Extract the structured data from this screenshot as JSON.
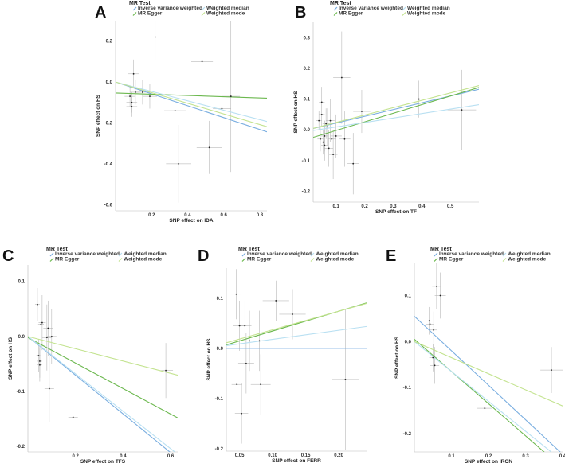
{
  "colors": {
    "ivw": "#7aaee0",
    "egger": "#6cb84f",
    "median": "#b9e0f2",
    "mode": "#c3e38f",
    "point": "#222222",
    "errorbar": "#aaaaaa"
  },
  "legend": {
    "title": "MR Test",
    "items": [
      {
        "key": "ivw",
        "label": "Inverse variance weighted"
      },
      {
        "key": "median",
        "label": "Weighted median"
      },
      {
        "key": "egger",
        "label": "MR Egger"
      },
      {
        "key": "mode",
        "label": "Weighted mode"
      }
    ]
  },
  "chart_data": [
    {
      "panel": "A",
      "type": "scatter",
      "xlabel": "SNP effect on IDA",
      "ylabel": "SNP effect on HS",
      "xlim": [
        0,
        0.84
      ],
      "ylim": [
        -0.63,
        0.3
      ],
      "xticks": [
        0.2,
        0.4,
        0.6,
        0.8
      ],
      "xtick_labels": [
        "0.2",
        "0.4",
        "0.6",
        "0.8"
      ],
      "yticks": [
        -0.6,
        -0.4,
        -0.2,
        0.0,
        0.2
      ],
      "ytick_labels": [
        "-0.6",
        "-0.4",
        "-0.2",
        "0.0",
        "0.2"
      ],
      "points": [
        {
          "x": 0.08,
          "y": -0.07,
          "xe": 0.03,
          "ye": 0.05
        },
        {
          "x": 0.09,
          "y": -0.1,
          "xe": 0.03,
          "ye": 0.05
        },
        {
          "x": 0.09,
          "y": -0.12,
          "xe": 0.03,
          "ye": 0.05
        },
        {
          "x": 0.1,
          "y": 0.04,
          "xe": 0.03,
          "ye": 0.07
        },
        {
          "x": 0.11,
          "y": -0.05,
          "xe": 0.03,
          "ye": 0.06
        },
        {
          "x": 0.15,
          "y": -0.05,
          "xe": 0.04,
          "ye": 0.06
        },
        {
          "x": 0.19,
          "y": -0.07,
          "xe": 0.04,
          "ye": 0.06
        },
        {
          "x": 0.22,
          "y": 0.22,
          "xe": 0.05,
          "ye": 0.11
        },
        {
          "x": 0.33,
          "y": -0.14,
          "xe": 0.06,
          "ye": 0.08
        },
        {
          "x": 0.35,
          "y": -0.4,
          "xe": 0.07,
          "ye": 0.19
        },
        {
          "x": 0.48,
          "y": 0.1,
          "xe": 0.06,
          "ye": 0.16
        },
        {
          "x": 0.52,
          "y": -0.32,
          "xe": 0.07,
          "ye": 0.13
        },
        {
          "x": 0.59,
          "y": -0.13,
          "xe": 0.05,
          "ye": 0.12
        },
        {
          "x": 0.64,
          "y": -0.07,
          "xe": 0.05,
          "ye": 0.37
        }
      ],
      "lines": [
        {
          "key": "ivw",
          "intercept": 0,
          "slope": -0.29
        },
        {
          "key": "egger",
          "intercept": -0.054,
          "slope": -0.03
        },
        {
          "key": "median",
          "intercept": 0,
          "slope": -0.23
        },
        {
          "key": "mode",
          "intercept": 0,
          "slope": -0.26
        }
      ]
    },
    {
      "panel": "B",
      "type": "scatter",
      "xlabel": "SNP effect on TF",
      "ylabel": "SNP effect on HS",
      "xlim": [
        0.02,
        0.6
      ],
      "ylim": [
        -0.235,
        0.35
      ],
      "xticks": [
        0.1,
        0.2,
        0.3,
        0.4,
        0.5
      ],
      "xtick_labels": [
        "0.1",
        "0.2",
        "0.3",
        "0.4",
        "0.5"
      ],
      "yticks": [
        -0.2,
        -0.1,
        0.0,
        0.1,
        0.2,
        0.3
      ],
      "ytick_labels": [
        "-0.2",
        "-0.1",
        "0.0",
        "0.1",
        "0.2",
        "0.3"
      ],
      "points": [
        {
          "x": 0.04,
          "y": 0.03,
          "xe": 0.01,
          "ye": 0.03
        },
        {
          "x": 0.045,
          "y": -0.03,
          "xe": 0.01,
          "ye": 0.04
        },
        {
          "x": 0.05,
          "y": 0.05,
          "xe": 0.01,
          "ye": 0.04
        },
        {
          "x": 0.05,
          "y": 0.09,
          "xe": 0.01,
          "ye": 0.05
        },
        {
          "x": 0.055,
          "y": -0.04,
          "xe": 0.01,
          "ye": 0.04
        },
        {
          "x": 0.06,
          "y": -0.02,
          "xe": 0.012,
          "ye": 0.05
        },
        {
          "x": 0.06,
          "y": -0.05,
          "xe": 0.012,
          "ye": 0.05
        },
        {
          "x": 0.065,
          "y": 0.02,
          "xe": 0.012,
          "ye": 0.05
        },
        {
          "x": 0.07,
          "y": 0.01,
          "xe": 0.012,
          "ye": 0.06
        },
        {
          "x": 0.075,
          "y": -0.06,
          "xe": 0.015,
          "ye": 0.06
        },
        {
          "x": 0.08,
          "y": 0.03,
          "xe": 0.015,
          "ye": 0.07
        },
        {
          "x": 0.085,
          "y": -0.03,
          "xe": 0.015,
          "ye": 0.06
        },
        {
          "x": 0.09,
          "y": -0.08,
          "xe": 0.015,
          "ye": 0.08
        },
        {
          "x": 0.1,
          "y": -0.02,
          "xe": 0.02,
          "ye": 0.07
        },
        {
          "x": 0.12,
          "y": 0.17,
          "xe": 0.03,
          "ye": 0.15
        },
        {
          "x": 0.13,
          "y": -0.03,
          "xe": 0.02,
          "ye": 0.09
        },
        {
          "x": 0.16,
          "y": -0.11,
          "xe": 0.02,
          "ye": 0.1
        },
        {
          "x": 0.19,
          "y": 0.06,
          "xe": 0.03,
          "ye": 0.07
        },
        {
          "x": 0.39,
          "y": 0.1,
          "xe": 0.06,
          "ye": 0.06
        },
        {
          "x": 0.54,
          "y": 0.065,
          "xe": 0.05,
          "ye": 0.13
        }
      ],
      "lines": [
        {
          "key": "ivw",
          "intercept": 0,
          "slope": 0.22
        },
        {
          "key": "egger",
          "intercept": -0.03,
          "slope": 0.28
        },
        {
          "key": "median",
          "intercept": -0.005,
          "slope": 0.145
        },
        {
          "key": "mode",
          "intercept": 0,
          "slope": 0.24
        }
      ]
    },
    {
      "panel": "C",
      "type": "scatter",
      "xlabel": "SNP effect on TFS",
      "ylabel": "SNP effect on HS",
      "xlim": [
        0.0,
        0.63
      ],
      "ylim": [
        -0.21,
        0.13
      ],
      "xticks": [
        0.2,
        0.4,
        0.6
      ],
      "xtick_labels": [
        "0.2",
        "0.4",
        "0.6"
      ],
      "yticks": [
        -0.2,
        -0.1,
        0.0,
        0.1
      ],
      "ytick_labels": [
        "-0.2",
        "-0.1",
        "0.0",
        "0.1"
      ],
      "points": [
        {
          "x": 0.04,
          "y": 0.058,
          "xe": 0.01,
          "ye": 0.03
        },
        {
          "x": 0.045,
          "y": -0.035,
          "xe": 0.01,
          "ye": 0.03
        },
        {
          "x": 0.05,
          "y": -0.045,
          "xe": 0.01,
          "ye": 0.03
        },
        {
          "x": 0.05,
          "y": -0.052,
          "xe": 0.01,
          "ye": 0.03
        },
        {
          "x": 0.055,
          "y": 0.022,
          "xe": 0.012,
          "ye": 0.04
        },
        {
          "x": 0.06,
          "y": 0.025,
          "xe": 0.015,
          "ye": 0.05
        },
        {
          "x": 0.08,
          "y": -0.002,
          "xe": 0.02,
          "ye": 0.06
        },
        {
          "x": 0.085,
          "y": 0.015,
          "xe": 0.02,
          "ye": 0.05
        },
        {
          "x": 0.09,
          "y": -0.095,
          "xe": 0.02,
          "ye": 0.06
        },
        {
          "x": 0.1,
          "y": 0.0,
          "xe": 0.02,
          "ye": 0.05
        },
        {
          "x": 0.19,
          "y": -0.147,
          "xe": 0.02,
          "ye": 0.03
        },
        {
          "x": 0.58,
          "y": -0.062,
          "xe": 0.03,
          "ye": 0.05
        }
      ],
      "lines": [
        {
          "key": "ivw",
          "intercept": 0,
          "slope": -0.352
        },
        {
          "key": "egger",
          "intercept": -0.002,
          "slope": -0.232
        },
        {
          "key": "median",
          "intercept": 0,
          "slope": -0.34
        },
        {
          "key": "mode",
          "intercept": 0,
          "slope": -0.112
        }
      ]
    },
    {
      "panel": "D",
      "type": "scatter",
      "xlabel": "SNP effect on FERR",
      "ylabel": "SNP effect on HS",
      "xlim": [
        0.03,
        0.242
      ],
      "ylim": [
        -0.205,
        0.16
      ],
      "xticks": [
        0.05,
        0.1,
        0.15,
        0.2
      ],
      "xtick_labels": [
        "0.05",
        "0.10",
        "0.15",
        "0.20"
      ],
      "yticks": [
        -0.2,
        -0.1,
        0.0,
        0.1
      ],
      "ytick_labels": [
        "-0.2",
        "-0.1",
        "0.0",
        "0.1"
      ],
      "points": [
        {
          "x": 0.045,
          "y": 0.108,
          "xe": 0.008,
          "ye": 0.05
        },
        {
          "x": 0.046,
          "y": -0.072,
          "xe": 0.008,
          "ye": 0.05
        },
        {
          "x": 0.05,
          "y": 0.045,
          "xe": 0.01,
          "ye": 0.05
        },
        {
          "x": 0.053,
          "y": -0.13,
          "xe": 0.01,
          "ye": 0.06
        },
        {
          "x": 0.058,
          "y": 0.045,
          "xe": 0.01,
          "ye": 0.05
        },
        {
          "x": 0.06,
          "y": -0.03,
          "xe": 0.012,
          "ye": 0.06
        },
        {
          "x": 0.065,
          "y": 0.015,
          "xe": 0.012,
          "ye": 0.06
        },
        {
          "x": 0.08,
          "y": 0.015,
          "xe": 0.015,
          "ye": 0.06
        },
        {
          "x": 0.082,
          "y": -0.072,
          "xe": 0.015,
          "ye": 0.06
        },
        {
          "x": 0.105,
          "y": 0.095,
          "xe": 0.02,
          "ye": 0.04
        },
        {
          "x": 0.13,
          "y": 0.068,
          "xe": 0.02,
          "ye": 0.05
        },
        {
          "x": 0.21,
          "y": -0.062,
          "xe": 0.02,
          "ye": 0.14
        }
      ],
      "lines": [
        {
          "key": "ivw",
          "intercept": 0,
          "slope": 0.0
        },
        {
          "key": "egger",
          "intercept": -0.005,
          "slope": 0.395
        },
        {
          "key": "median",
          "intercept": 0,
          "slope": 0.18
        },
        {
          "key": "mode",
          "intercept": 0,
          "slope": 0.37
        }
      ]
    },
    {
      "panel": "E",
      "type": "scatter",
      "xlabel": "SNP effect on IRON",
      "ylabel": "SNP effect on HS",
      "xlim": [
        0.0,
        0.4
      ],
      "ylim": [
        -0.24,
        0.17
      ],
      "xticks": [
        0.1,
        0.2,
        0.3,
        0.4
      ],
      "xtick_labels": [
        "0.1",
        "0.2",
        "0.3",
        "0.4"
      ],
      "yticks": [
        -0.2,
        -0.1,
        0.0,
        0.1
      ],
      "ytick_labels": [
        "-0.2",
        "-0.1",
        "0.0",
        "0.1"
      ],
      "points": [
        {
          "x": 0.04,
          "y": 0.045,
          "xe": 0.01,
          "ye": 0.03
        },
        {
          "x": 0.042,
          "y": 0.038,
          "xe": 0.01,
          "ye": 0.03
        },
        {
          "x": 0.05,
          "y": -0.035,
          "xe": 0.01,
          "ye": 0.03
        },
        {
          "x": 0.052,
          "y": 0.025,
          "xe": 0.01,
          "ye": 0.04
        },
        {
          "x": 0.055,
          "y": -0.052,
          "xe": 0.012,
          "ye": 0.04
        },
        {
          "x": 0.06,
          "y": 0.12,
          "xe": 0.012,
          "ye": 0.05
        },
        {
          "x": 0.07,
          "y": 0.1,
          "xe": 0.015,
          "ye": 0.05
        },
        {
          "x": 0.19,
          "y": -0.145,
          "xe": 0.02,
          "ye": 0.03
        },
        {
          "x": 0.37,
          "y": -0.062,
          "xe": 0.03,
          "ye": 0.05
        }
      ],
      "lines": [
        {
          "key": "ivw",
          "intercept": 0.055,
          "slope": -0.75
        },
        {
          "key": "egger",
          "intercept": 0.005,
          "slope": -0.7
        },
        {
          "key": "median",
          "intercept": 0,
          "slope": -0.65
        },
        {
          "key": "mode",
          "intercept": 0,
          "slope": -0.35
        }
      ]
    }
  ]
}
